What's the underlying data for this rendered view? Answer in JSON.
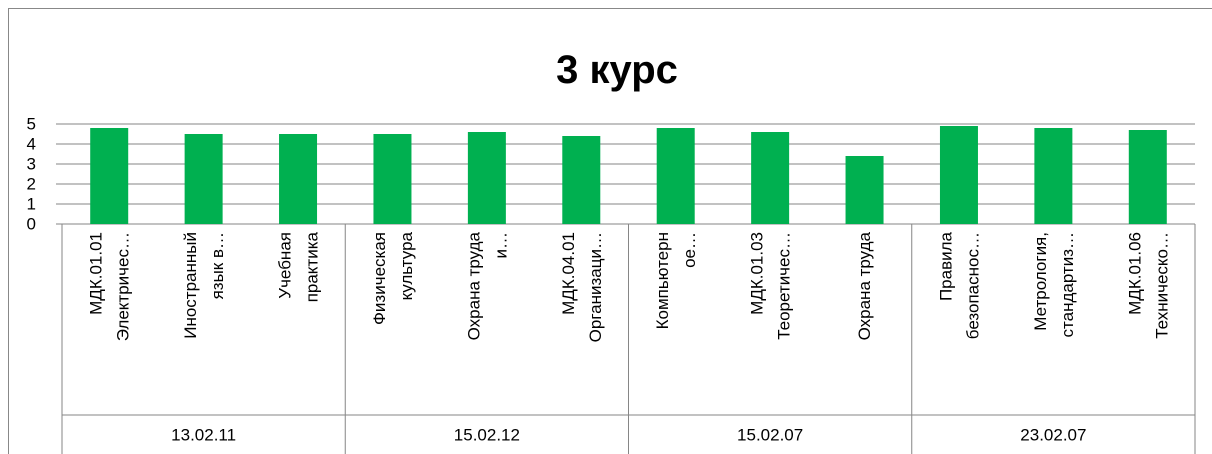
{
  "chart_data": {
    "type": "bar",
    "title": "3 курс",
    "groups": [
      {
        "label": "13.02.11",
        "categories": [
          [
            "МДК.01.01",
            "Электричес…"
          ],
          [
            "Иностранный",
            "язык в…"
          ],
          [
            "Учебная",
            "практика"
          ]
        ]
      },
      {
        "label": "15.02.12",
        "categories": [
          [
            "Физическая",
            "культура"
          ],
          [
            "Охрана труда",
            "и…"
          ],
          [
            "МДК.04.01",
            "Организаци…"
          ]
        ]
      },
      {
        "label": "15.02.07",
        "categories": [
          [
            "Компьютерн",
            "ое…"
          ],
          [
            "МДК.01.03",
            "Теоретичес…"
          ],
          [
            "Охрана труда"
          ]
        ]
      },
      {
        "label": "23.02.07",
        "categories": [
          [
            "Правила",
            "безопаснос…"
          ],
          [
            "Метрология,",
            "стандартиз…"
          ],
          [
            "МДК.01.06",
            "Техническо…"
          ]
        ]
      }
    ],
    "values": [
      4.8,
      4.5,
      4.5,
      4.5,
      4.6,
      4.4,
      4.8,
      4.6,
      3.4,
      4.9,
      4.8,
      4.7
    ],
    "color": "#00b050",
    "ylim": [
      0,
      5
    ],
    "yticks": [
      0,
      1,
      2,
      3,
      4,
      5
    ],
    "grid": true
  }
}
